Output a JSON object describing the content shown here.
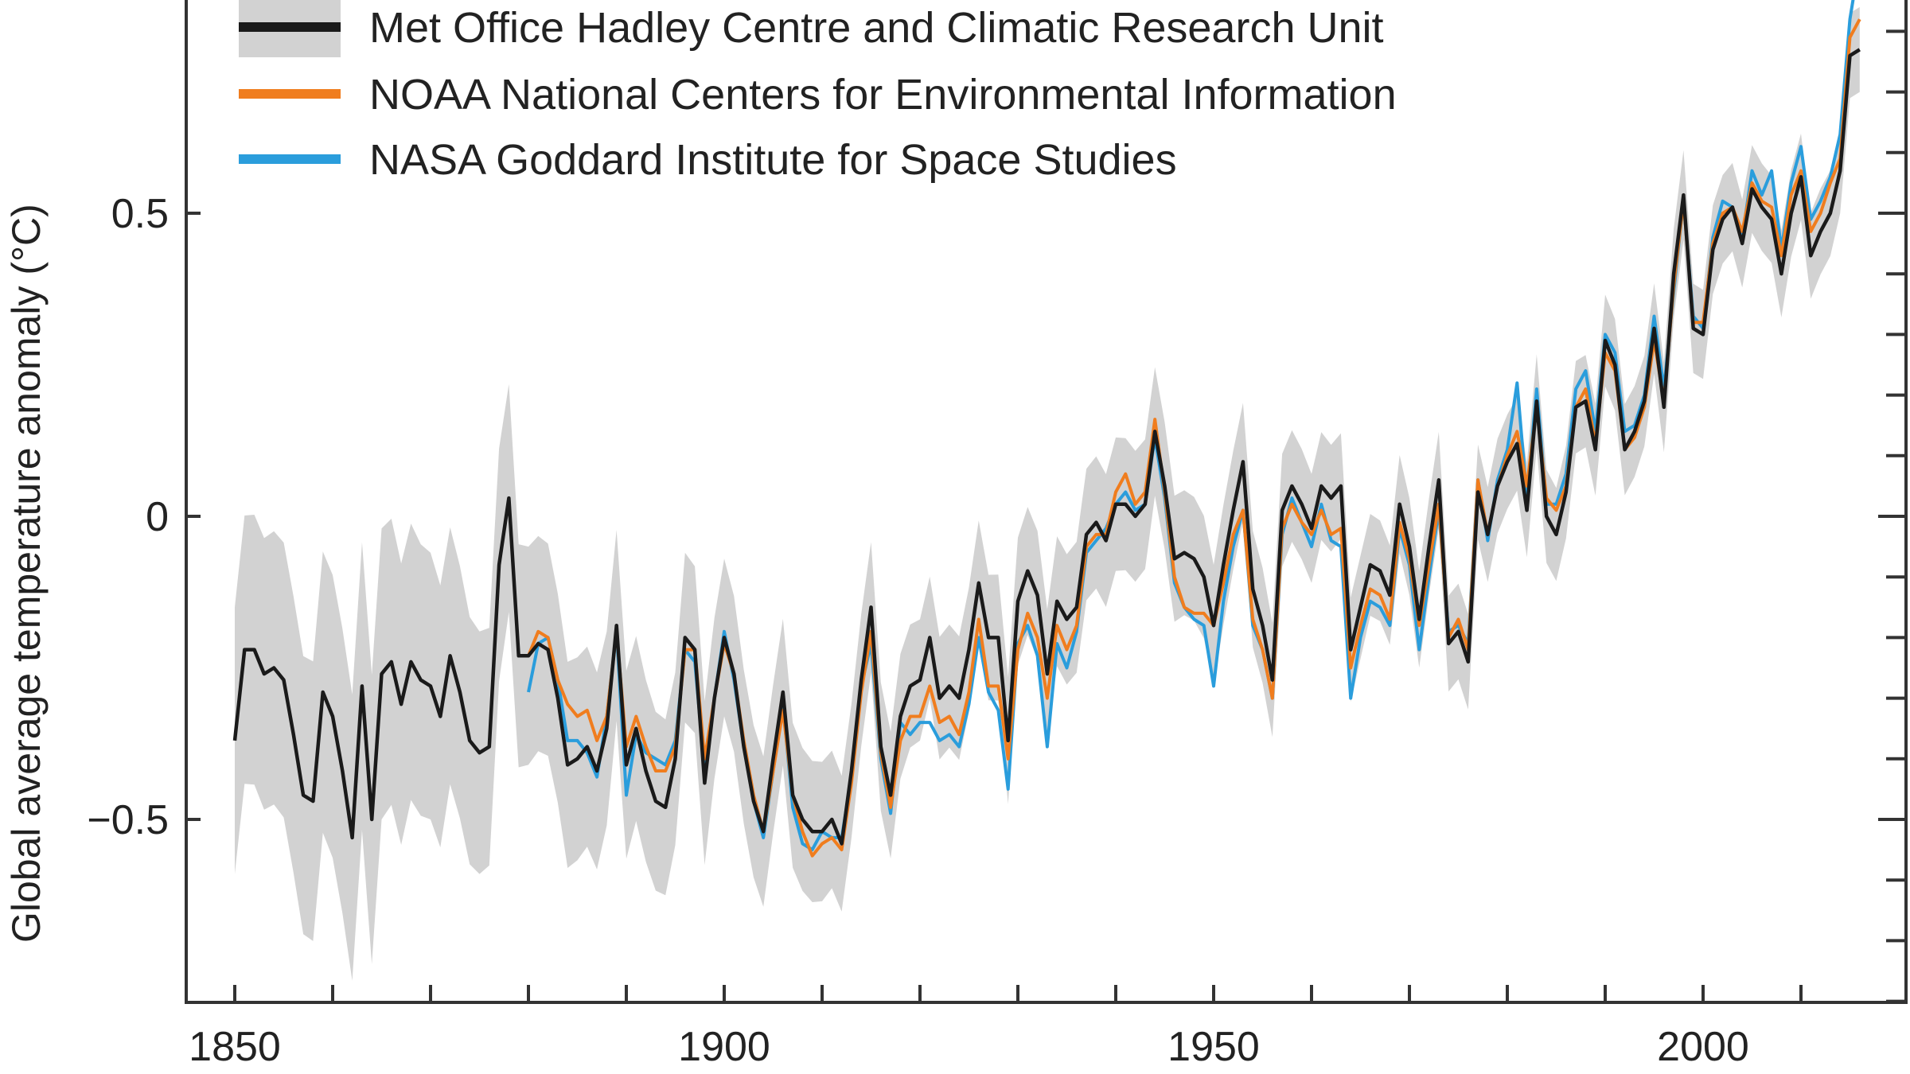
{
  "chart_data": {
    "type": "line",
    "title": "",
    "xlabel": "",
    "ylabel": "Global average temperature anomaly (°C)",
    "xlim": [
      1845,
      2022
    ],
    "ylim": [
      -0.83,
      0.85
    ],
    "grid": false,
    "legend_position": "top-left",
    "x_ticks": [
      1850,
      1860,
      1870,
      1880,
      1890,
      1900,
      1910,
      1920,
      1930,
      1940,
      1950,
      1960,
      1970,
      1980,
      1990,
      2000,
      2010
    ],
    "x_tick_labels": [
      "1850",
      "1900",
      "1950",
      "2000"
    ],
    "x_tick_label_values": [
      1850,
      1900,
      1950,
      2000
    ],
    "y_tick_labels": [
      "0.5",
      "0",
      "−0.5"
    ],
    "y_tick_label_values": [
      0.5,
      0,
      -0.5
    ],
    "y_minor_ticks": [
      -0.8,
      -0.7,
      -0.6,
      -0.5,
      -0.4,
      -0.3,
      -0.2,
      -0.1,
      0,
      0.1,
      0.2,
      0.3,
      0.4,
      0.5,
      0.6,
      0.7,
      0.8
    ],
    "series": [
      {
        "name": "Met Office Hadley Centre and Climatic Research Unit",
        "color": "#1a1a1a",
        "start_year": 1850,
        "values": [
          -0.37,
          -0.22,
          -0.22,
          -0.26,
          -0.25,
          -0.27,
          -0.36,
          -0.46,
          -0.47,
          -0.29,
          -0.33,
          -0.42,
          -0.53,
          -0.28,
          -0.5,
          -0.26,
          -0.24,
          -0.31,
          -0.24,
          -0.27,
          -0.28,
          -0.33,
          -0.23,
          -0.29,
          -0.37,
          -0.39,
          -0.38,
          -0.08,
          0.03,
          -0.23,
          -0.23,
          -0.21,
          -0.22,
          -0.3,
          -0.41,
          -0.4,
          -0.38,
          -0.42,
          -0.35,
          -0.18,
          -0.41,
          -0.35,
          -0.42,
          -0.47,
          -0.48,
          -0.4,
          -0.2,
          -0.22,
          -0.44,
          -0.3,
          -0.2,
          -0.26,
          -0.38,
          -0.47,
          -0.52,
          -0.4,
          -0.29,
          -0.46,
          -0.5,
          -0.52,
          -0.52,
          -0.5,
          -0.54,
          -0.42,
          -0.27,
          -0.15,
          -0.38,
          -0.46,
          -0.33,
          -0.28,
          -0.27,
          -0.2,
          -0.3,
          -0.28,
          -0.3,
          -0.22,
          -0.11,
          -0.2,
          -0.2,
          -0.37,
          -0.14,
          -0.09,
          -0.13,
          -0.26,
          -0.14,
          -0.17,
          -0.15,
          -0.03,
          -0.01,
          -0.04,
          0.02,
          0.02,
          0.0,
          0.02,
          0.14,
          0.05,
          -0.07,
          -0.06,
          -0.07,
          -0.1,
          -0.18,
          -0.08,
          0.01,
          0.09,
          -0.12,
          -0.18,
          -0.27,
          0.01,
          0.05,
          0.02,
          -0.02,
          0.05,
          0.03,
          0.05,
          -0.22,
          -0.15,
          -0.08,
          -0.09,
          -0.13,
          0.02,
          -0.05,
          -0.17,
          -0.05,
          0.06,
          -0.21,
          -0.19,
          -0.24,
          0.04,
          -0.03,
          0.05,
          0.09,
          0.12,
          0.01,
          0.19,
          0.0,
          -0.03,
          0.04,
          0.18,
          0.19,
          0.11,
          0.29,
          0.25,
          0.11,
          0.14,
          0.19,
          0.31,
          0.18,
          0.4,
          0.53,
          0.31,
          0.3,
          0.44,
          0.49,
          0.51,
          0.45,
          0.54,
          0.51,
          0.49,
          0.4,
          0.5,
          0.56,
          0.43,
          0.47,
          0.5,
          0.57,
          0.76,
          0.77
        ],
        "uncertainty_halfwidth": {
          "years": [
            1850,
            1865,
            1880,
            1900,
            1920,
            1940,
            1950,
            1970,
            2016
          ],
          "values": [
            0.22,
            0.24,
            0.18,
            0.13,
            0.1,
            0.11,
            0.1,
            0.08,
            0.07
          ]
        },
        "band_color": "#d2d2d2"
      },
      {
        "name": "NOAA National Centers for Environmental Information",
        "color": "#f07d1e",
        "start_year": 1880,
        "values": [
          -0.23,
          -0.19,
          -0.2,
          -0.27,
          -0.31,
          -0.33,
          -0.32,
          -0.37,
          -0.33,
          -0.19,
          -0.38,
          -0.33,
          -0.38,
          -0.42,
          -0.42,
          -0.38,
          -0.22,
          -0.22,
          -0.4,
          -0.3,
          -0.21,
          -0.26,
          -0.37,
          -0.46,
          -0.52,
          -0.42,
          -0.32,
          -0.46,
          -0.52,
          -0.56,
          -0.54,
          -0.53,
          -0.55,
          -0.44,
          -0.29,
          -0.19,
          -0.39,
          -0.48,
          -0.37,
          -0.33,
          -0.33,
          -0.28,
          -0.34,
          -0.33,
          -0.36,
          -0.29,
          -0.17,
          -0.28,
          -0.28,
          -0.4,
          -0.22,
          -0.16,
          -0.2,
          -0.3,
          -0.18,
          -0.22,
          -0.18,
          -0.05,
          -0.03,
          -0.03,
          0.04,
          0.07,
          0.02,
          0.04,
          0.16,
          0.04,
          -0.1,
          -0.15,
          -0.16,
          -0.16,
          -0.18,
          -0.11,
          -0.03,
          0.01,
          -0.17,
          -0.22,
          -0.3,
          -0.02,
          0.02,
          -0.01,
          -0.03,
          0.01,
          -0.03,
          -0.02,
          -0.25,
          -0.18,
          -0.12,
          -0.13,
          -0.17,
          -0.01,
          -0.07,
          -0.18,
          -0.08,
          0.02,
          -0.2,
          -0.17,
          -0.22,
          0.06,
          -0.03,
          0.05,
          0.1,
          0.14,
          0.05,
          0.18,
          0.03,
          0.01,
          0.05,
          0.18,
          0.21,
          0.12,
          0.27,
          0.24,
          0.11,
          0.13,
          0.18,
          0.29,
          0.19,
          0.38,
          0.52,
          0.32,
          0.32,
          0.45,
          0.5,
          0.51,
          0.47,
          0.55,
          0.52,
          0.51,
          0.43,
          0.53,
          0.57,
          0.47,
          0.5,
          0.55,
          0.59,
          0.79,
          0.82
        ]
      },
      {
        "name": "NASA Goddard Institute for Space Studies",
        "color": "#2a9ddc",
        "start_year": 1880,
        "values": [
          -0.29,
          -0.21,
          -0.2,
          -0.27,
          -0.37,
          -0.37,
          -0.39,
          -0.43,
          -0.33,
          -0.19,
          -0.46,
          -0.36,
          -0.39,
          -0.4,
          -0.41,
          -0.37,
          -0.22,
          -0.24,
          -0.42,
          -0.3,
          -0.19,
          -0.27,
          -0.38,
          -0.47,
          -0.53,
          -0.42,
          -0.31,
          -0.48,
          -0.54,
          -0.55,
          -0.52,
          -0.53,
          -0.53,
          -0.43,
          -0.28,
          -0.21,
          -0.4,
          -0.49,
          -0.34,
          -0.36,
          -0.34,
          -0.34,
          -0.37,
          -0.36,
          -0.38,
          -0.31,
          -0.2,
          -0.29,
          -0.32,
          -0.45,
          -0.21,
          -0.18,
          -0.23,
          -0.38,
          -0.21,
          -0.25,
          -0.19,
          -0.06,
          -0.04,
          -0.02,
          0.02,
          0.04,
          0.01,
          0.02,
          0.13,
          0.03,
          -0.11,
          -0.15,
          -0.17,
          -0.18,
          -0.28,
          -0.14,
          -0.05,
          0.01,
          -0.18,
          -0.22,
          -0.3,
          -0.03,
          0.03,
          -0.01,
          -0.05,
          0.02,
          -0.04,
          -0.05,
          -0.3,
          -0.2,
          -0.14,
          -0.15,
          -0.18,
          -0.02,
          -0.08,
          -0.22,
          -0.1,
          0.01,
          -0.19,
          -0.18,
          -0.21,
          0.06,
          -0.04,
          0.06,
          0.11,
          0.22,
          0.03,
          0.21,
          0.02,
          0.02,
          0.07,
          0.21,
          0.24,
          0.14,
          0.3,
          0.27,
          0.14,
          0.15,
          0.2,
          0.33,
          0.21,
          0.37,
          0.52,
          0.33,
          0.31,
          0.46,
          0.52,
          0.51,
          0.46,
          0.57,
          0.53,
          0.57,
          0.44,
          0.55,
          0.61,
          0.49,
          0.52,
          0.56,
          0.63,
          0.82,
          0.92
        ]
      }
    ]
  }
}
